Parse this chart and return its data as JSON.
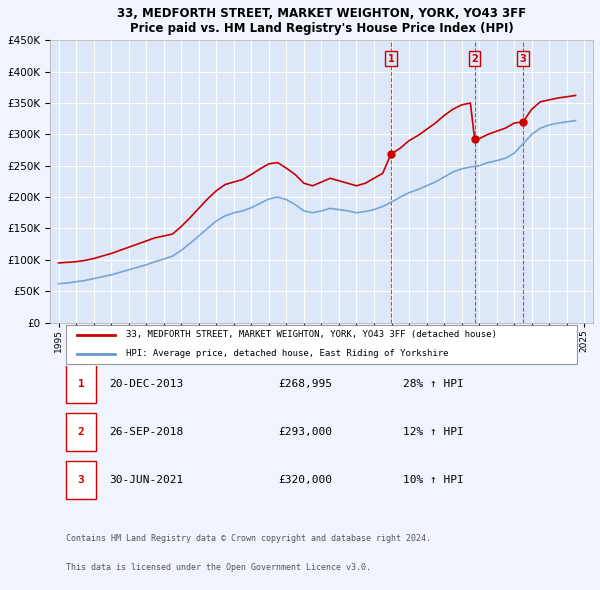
{
  "title": "33, MEDFORTH STREET, MARKET WEIGHTON, YORK, YO43 3FF",
  "subtitle": "Price paid vs. HM Land Registry's House Price Index (HPI)",
  "ylabel_ticks": [
    "£0",
    "£50K",
    "£100K",
    "£150K",
    "£200K",
    "£250K",
    "£300K",
    "£350K",
    "£400K",
    "£450K"
  ],
  "ylabel_values": [
    0,
    50000,
    100000,
    150000,
    200000,
    250000,
    300000,
    350000,
    400000,
    450000
  ],
  "ylim": [
    0,
    450000
  ],
  "background_color": "#f0f4ff",
  "plot_bg_color": "#dce8f8",
  "grid_color": "#ffffff",
  "sale_color": "#cc0000",
  "hpi_color": "#6699cc",
  "sale_label": "33, MEDFORTH STREET, MARKET WEIGHTON, YORK, YO43 3FF (detached house)",
  "hpi_label": "HPI: Average price, detached house, East Riding of Yorkshire",
  "transactions": [
    {
      "num": 1,
      "date": "20-DEC-2013",
      "price": 268995,
      "pct": "28%",
      "dir": "↑",
      "x_year": 2013.97
    },
    {
      "num": 2,
      "date": "26-SEP-2018",
      "price": 293000,
      "pct": "12%",
      "dir": "↑",
      "x_year": 2018.74
    },
    {
      "num": 3,
      "date": "30-JUN-2021",
      "price": 320000,
      "pct": "10%",
      "dir": "↑",
      "x_year": 2021.5
    }
  ],
  "footer1": "Contains HM Land Registry data © Crown copyright and database right 2024.",
  "footer2": "This data is licensed under the Open Government Licence v3.0.",
  "hpi_x": [
    1995.0,
    1995.5,
    1996.0,
    1996.5,
    1997.0,
    1997.5,
    1998.0,
    1998.5,
    1999.0,
    1999.5,
    2000.0,
    2000.5,
    2001.0,
    2001.5,
    2002.0,
    2002.5,
    2003.0,
    2003.5,
    2004.0,
    2004.5,
    2005.0,
    2005.5,
    2006.0,
    2006.5,
    2007.0,
    2007.5,
    2008.0,
    2008.5,
    2009.0,
    2009.5,
    2010.0,
    2010.5,
    2011.0,
    2011.5,
    2012.0,
    2012.5,
    2013.0,
    2013.5,
    2014.0,
    2014.5,
    2015.0,
    2015.5,
    2016.0,
    2016.5,
    2017.0,
    2017.5,
    2018.0,
    2018.5,
    2019.0,
    2019.5,
    2020.0,
    2020.5,
    2021.0,
    2021.5,
    2022.0,
    2022.5,
    2023.0,
    2023.5,
    2024.0,
    2024.5
  ],
  "hpi_y": [
    62000,
    63000,
    65000,
    67000,
    70000,
    73000,
    76000,
    80000,
    84000,
    88000,
    92000,
    97000,
    101000,
    106000,
    115000,
    126000,
    138000,
    150000,
    162000,
    170000,
    175000,
    178000,
    183000,
    190000,
    197000,
    200000,
    196000,
    188000,
    178000,
    175000,
    178000,
    182000,
    180000,
    178000,
    175000,
    177000,
    180000,
    185000,
    192000,
    200000,
    207000,
    212000,
    218000,
    224000,
    232000,
    240000,
    245000,
    248000,
    250000,
    255000,
    258000,
    262000,
    270000,
    285000,
    300000,
    310000,
    315000,
    318000,
    320000,
    322000
  ],
  "sale_x": [
    1995.0,
    1995.5,
    1996.0,
    1996.5,
    1997.0,
    1997.5,
    1998.0,
    1998.5,
    1999.0,
    1999.5,
    2000.0,
    2000.5,
    2001.0,
    2001.5,
    2002.0,
    2002.5,
    2003.0,
    2003.5,
    2004.0,
    2004.5,
    2005.0,
    2005.5,
    2006.0,
    2006.5,
    2007.0,
    2007.5,
    2008.0,
    2008.5,
    2009.0,
    2009.5,
    2010.0,
    2010.5,
    2011.0,
    2011.5,
    2012.0,
    2012.5,
    2013.0,
    2013.5,
    2013.97,
    2014.0,
    2014.5,
    2015.0,
    2015.5,
    2016.0,
    2016.5,
    2017.0,
    2017.5,
    2018.0,
    2018.5,
    2018.74,
    2019.0,
    2019.5,
    2020.0,
    2020.5,
    2021.0,
    2021.5,
    2021.5,
    2022.0,
    2022.5,
    2023.0,
    2023.5,
    2024.0,
    2024.5
  ],
  "sale_y": [
    95000,
    96000,
    97000,
    99000,
    102000,
    106000,
    110000,
    115000,
    120000,
    125000,
    130000,
    135000,
    138000,
    141000,
    153000,
    167000,
    182000,
    197000,
    210000,
    220000,
    224000,
    228000,
    236000,
    245000,
    253000,
    255000,
    246000,
    236000,
    222000,
    218000,
    224000,
    230000,
    226000,
    222000,
    218000,
    222000,
    230000,
    238000,
    268995,
    268995,
    278000,
    290000,
    298000,
    308000,
    318000,
    330000,
    340000,
    347000,
    350000,
    293000,
    293000,
    300000,
    305000,
    310000,
    318000,
    320000,
    320000,
    340000,
    352000,
    355000,
    358000,
    360000,
    362000
  ],
  "xticks": [
    1995,
    1996,
    1997,
    1998,
    1999,
    2000,
    2001,
    2002,
    2003,
    2004,
    2005,
    2006,
    2007,
    2008,
    2009,
    2010,
    2011,
    2012,
    2013,
    2014,
    2015,
    2016,
    2017,
    2018,
    2019,
    2020,
    2021,
    2022,
    2023,
    2024,
    2025
  ],
  "xlim": [
    1994.5,
    2025.5
  ]
}
